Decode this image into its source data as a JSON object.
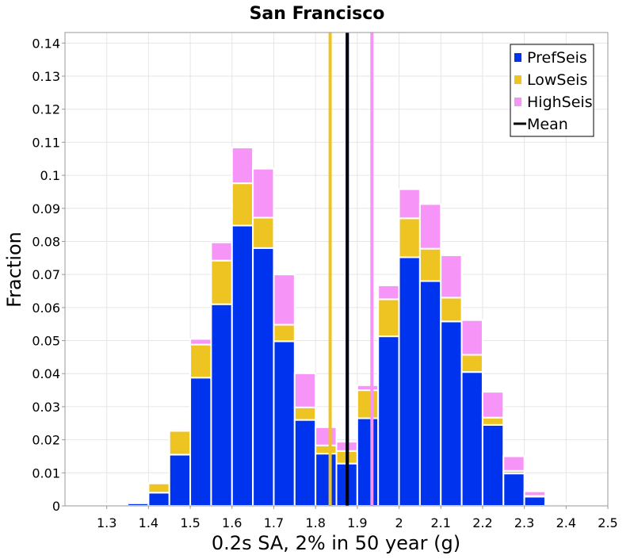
{
  "chart_data": {
    "type": "bar",
    "stacked": true,
    "title": "San Francisco",
    "xlabel": "0.2s SA, 2% in 50 year (g)",
    "ylabel": "Fraction",
    "xlim": [
      1.2,
      2.5
    ],
    "ylim": [
      0,
      0.1432
    ],
    "x_ticks": [
      1.3,
      1.4,
      1.5,
      1.6,
      1.7,
      1.8,
      1.9,
      2.0,
      2.1,
      2.2,
      2.3,
      2.4,
      2.5
    ],
    "x_tick_labels": [
      "1.3",
      "1.4",
      "1.5",
      "1.6",
      "1.7",
      "1.8",
      "1.9",
      "2",
      "2.1",
      "2.2",
      "2.3",
      "2.4",
      "2.5"
    ],
    "y_ticks": [
      0,
      0.01,
      0.02,
      0.03,
      0.04,
      0.05,
      0.06,
      0.07,
      0.08,
      0.09,
      0.1,
      0.11,
      0.12,
      0.13,
      0.14
    ],
    "y_tick_labels": [
      "0",
      "0.01",
      "0.02",
      "0.03",
      "0.04",
      "0.05",
      "0.06",
      "0.07",
      "0.08",
      "0.09",
      "0.1",
      "0.11",
      "0.12",
      "0.13",
      "0.14"
    ],
    "grid": true,
    "legend_position": "top-right",
    "bin_width": 0.05,
    "bin_centers": [
      1.275,
      1.325,
      1.375,
      1.425,
      1.475,
      1.525,
      1.575,
      1.625,
      1.675,
      1.725,
      1.775,
      1.825,
      1.875,
      1.925,
      1.975,
      2.025,
      2.075,
      2.125,
      2.175,
      2.225,
      2.275,
      2.325,
      2.375,
      2.425,
      2.475
    ],
    "series": [
      {
        "name": "PrefSeis",
        "color": "#0033ee",
        "values": [
          0,
          0.0002,
          0.0008,
          0.004,
          0.0155,
          0.0388,
          0.061,
          0.0848,
          0.078,
          0.0498,
          0.026,
          0.0158,
          0.0128,
          0.0265,
          0.0513,
          0.0752,
          0.068,
          0.0558,
          0.0405,
          0.0245,
          0.0098,
          0.0028,
          0.0005,
          0.0002,
          0
        ]
      },
      {
        "name": "LowSeis",
        "color": "#eec422",
        "values": [
          0,
          0,
          0.0005,
          0.0028,
          0.0072,
          0.01,
          0.0132,
          0.0128,
          0.0092,
          0.005,
          0.0038,
          0.0025,
          0.0038,
          0.0085,
          0.0112,
          0.0118,
          0.0098,
          0.0072,
          0.0052,
          0.0022,
          0.0008,
          0.0002,
          0,
          0,
          0
        ]
      },
      {
        "name": "HighSeis",
        "color": "#f794f7",
        "values": [
          0.0002,
          0.0002,
          0.0003,
          0.0001,
          0.0005,
          0.0017,
          0.0055,
          0.0108,
          0.0148,
          0.0152,
          0.0103,
          0.0055,
          0.0028,
          0.0015,
          0.0042,
          0.0088,
          0.0135,
          0.0128,
          0.0105,
          0.0078,
          0.0044,
          0.0014,
          0.0003,
          0.0001,
          0
        ]
      }
    ],
    "vertical_lines": [
      {
        "name": "LowSeis",
        "x": 1.835,
        "color": "#eec422"
      },
      {
        "name": "HighSeis",
        "x": 1.935,
        "color": "#f794f7"
      },
      {
        "name": "PrefSeis",
        "x": 1.876,
        "color": "#0033ee"
      },
      {
        "name": "Mean",
        "x": 1.876,
        "color": "#000000"
      }
    ],
    "legend": [
      {
        "label": "PrefSeis",
        "color": "#0033ee",
        "kind": "box"
      },
      {
        "label": "LowSeis",
        "color": "#eec422",
        "kind": "box"
      },
      {
        "label": "HighSeis",
        "color": "#f794f7",
        "kind": "box"
      },
      {
        "label": "Mean",
        "color": "#000000",
        "kind": "line"
      }
    ]
  }
}
